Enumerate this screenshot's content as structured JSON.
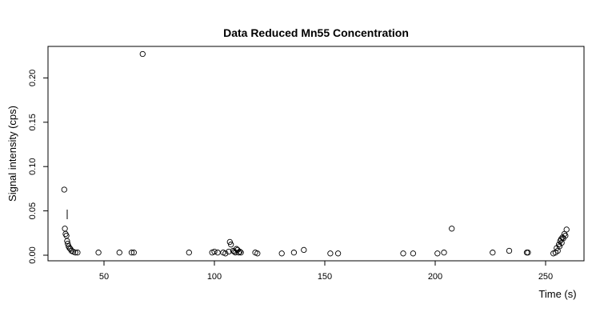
{
  "chart_data": {
    "type": "scatter",
    "title": "Data Reduced Mn55 Concentration",
    "xlabel": "Time (s)",
    "ylabel": "Signal intensity (cps)",
    "xlim": [
      30,
      260
    ],
    "ylim": [
      0,
      0.225
    ],
    "x_ticks": [
      50,
      100,
      150,
      200,
      250
    ],
    "y_ticks": [
      0.0,
      0.05,
      0.1,
      0.15,
      0.2
    ],
    "x_tick_labels": [
      "50",
      "100",
      "150",
      "200",
      "250"
    ],
    "y_tick_labels": [
      "0.00",
      "0.05",
      "0.10",
      "0.15",
      "0.20"
    ],
    "grid": false,
    "legend": "none",
    "series": [
      {
        "marker": "open-circle",
        "color": "#000000",
        "x": [
          32.0,
          32.3,
          32.6,
          33.0,
          33.3,
          33.6,
          34.0,
          34.4,
          34.8,
          35.3,
          36.0,
          37.0,
          38.0,
          47.5,
          57.0,
          62.5,
          63.5,
          67.5,
          88.5,
          99.0,
          100.0,
          101.5,
          104.0,
          105.0,
          106.5,
          107.0,
          107.5,
          108.5,
          109.0,
          109.5,
          110.0,
          110.5,
          111.0,
          111.5,
          112.0,
          118.5,
          119.5,
          130.5,
          136.0,
          140.5,
          152.5,
          156.0,
          185.5,
          190.0,
          201.0,
          204.0,
          207.5,
          226.0,
          233.5,
          241.5,
          242.0,
          253.5,
          254.5,
          255.0,
          255.5,
          256.0,
          256.3,
          256.6,
          257.0,
          257.3,
          257.6,
          258.0,
          258.5,
          259.0,
          259.5
        ],
        "y": [
          0.074,
          0.03,
          0.024,
          0.022,
          0.016,
          0.013,
          0.01,
          0.008,
          0.007,
          0.005,
          0.004,
          0.003,
          0.003,
          0.003,
          0.003,
          0.003,
          0.003,
          0.227,
          0.003,
          0.003,
          0.004,
          0.003,
          0.003,
          0.002,
          0.004,
          0.015,
          0.012,
          0.005,
          0.004,
          0.003,
          0.007,
          0.006,
          0.003,
          0.004,
          0.003,
          0.003,
          0.002,
          0.002,
          0.003,
          0.006,
          0.002,
          0.002,
          0.002,
          0.002,
          0.002,
          0.003,
          0.03,
          0.003,
          0.005,
          0.003,
          0.003,
          0.002,
          0.003,
          0.008,
          0.005,
          0.012,
          0.01,
          0.016,
          0.018,
          0.014,
          0.02,
          0.019,
          0.024,
          0.022,
          0.029
        ]
      }
    ]
  }
}
